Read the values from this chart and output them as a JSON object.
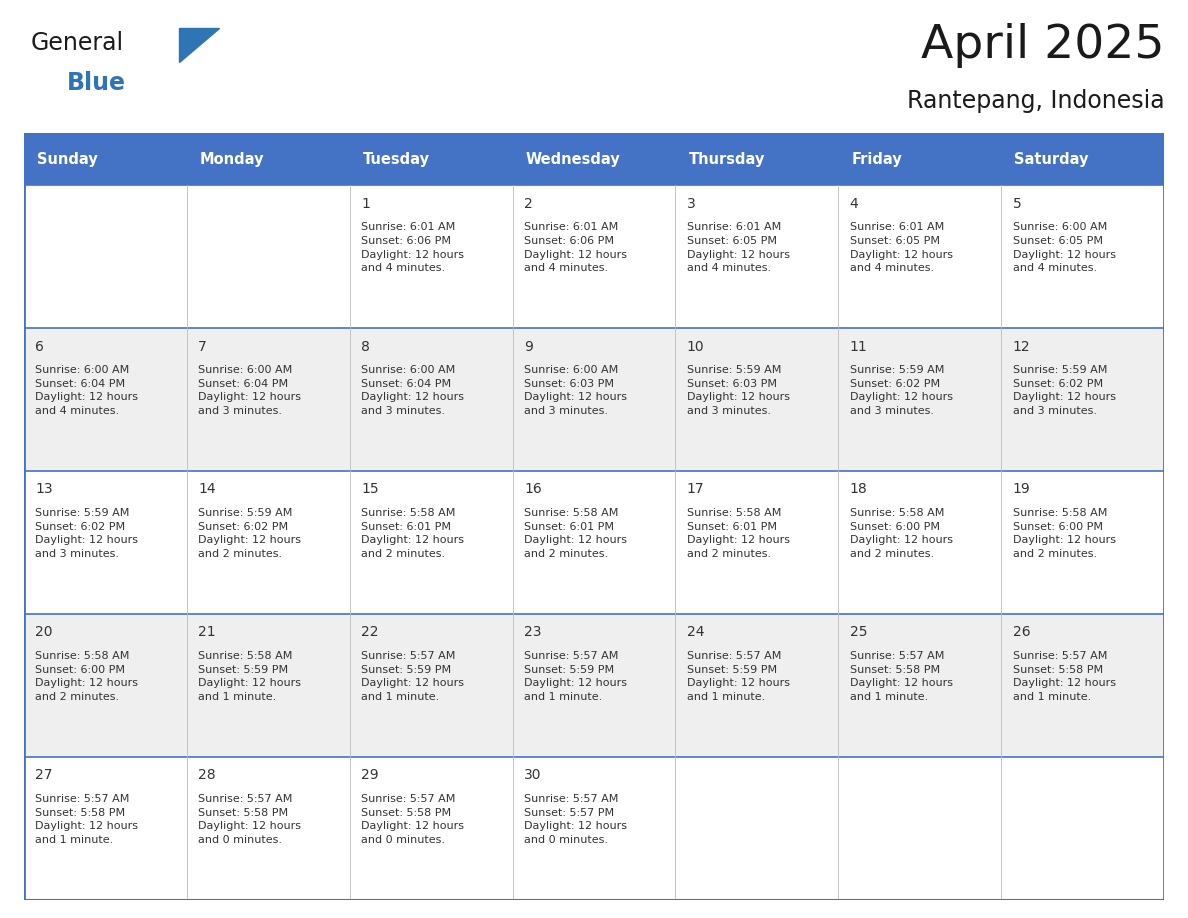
{
  "title": "April 2025",
  "subtitle": "Rantepang, Indonesia",
  "header_bg_color": "#4472C4",
  "header_text_color": "#FFFFFF",
  "header_font_size": 10.5,
  "days_of_week": [
    "Sunday",
    "Monday",
    "Tuesday",
    "Wednesday",
    "Thursday",
    "Friday",
    "Saturday"
  ],
  "title_fontsize": 34,
  "subtitle_fontsize": 17,
  "cell_text_color": "#333333",
  "alt_row_color": "#EFEFEF",
  "white_row_color": "#FFFFFF",
  "border_color": "#4472C4",
  "day_number_fontsize": 10,
  "cell_info_fontsize": 8,
  "logo_general_color": "#1a1a1a",
  "logo_blue_color": "#2E75B6",
  "logo_triangle_color": "#2E75B6",
  "calendar_data": [
    [
      {
        "day": "",
        "info": ""
      },
      {
        "day": "",
        "info": ""
      },
      {
        "day": "1",
        "info": "Sunrise: 6:01 AM\nSunset: 6:06 PM\nDaylight: 12 hours\nand 4 minutes."
      },
      {
        "day": "2",
        "info": "Sunrise: 6:01 AM\nSunset: 6:06 PM\nDaylight: 12 hours\nand 4 minutes."
      },
      {
        "day": "3",
        "info": "Sunrise: 6:01 AM\nSunset: 6:05 PM\nDaylight: 12 hours\nand 4 minutes."
      },
      {
        "day": "4",
        "info": "Sunrise: 6:01 AM\nSunset: 6:05 PM\nDaylight: 12 hours\nand 4 minutes."
      },
      {
        "day": "5",
        "info": "Sunrise: 6:00 AM\nSunset: 6:05 PM\nDaylight: 12 hours\nand 4 minutes."
      }
    ],
    [
      {
        "day": "6",
        "info": "Sunrise: 6:00 AM\nSunset: 6:04 PM\nDaylight: 12 hours\nand 4 minutes."
      },
      {
        "day": "7",
        "info": "Sunrise: 6:00 AM\nSunset: 6:04 PM\nDaylight: 12 hours\nand 3 minutes."
      },
      {
        "day": "8",
        "info": "Sunrise: 6:00 AM\nSunset: 6:04 PM\nDaylight: 12 hours\nand 3 minutes."
      },
      {
        "day": "9",
        "info": "Sunrise: 6:00 AM\nSunset: 6:03 PM\nDaylight: 12 hours\nand 3 minutes."
      },
      {
        "day": "10",
        "info": "Sunrise: 5:59 AM\nSunset: 6:03 PM\nDaylight: 12 hours\nand 3 minutes."
      },
      {
        "day": "11",
        "info": "Sunrise: 5:59 AM\nSunset: 6:02 PM\nDaylight: 12 hours\nand 3 minutes."
      },
      {
        "day": "12",
        "info": "Sunrise: 5:59 AM\nSunset: 6:02 PM\nDaylight: 12 hours\nand 3 minutes."
      }
    ],
    [
      {
        "day": "13",
        "info": "Sunrise: 5:59 AM\nSunset: 6:02 PM\nDaylight: 12 hours\nand 3 minutes."
      },
      {
        "day": "14",
        "info": "Sunrise: 5:59 AM\nSunset: 6:02 PM\nDaylight: 12 hours\nand 2 minutes."
      },
      {
        "day": "15",
        "info": "Sunrise: 5:58 AM\nSunset: 6:01 PM\nDaylight: 12 hours\nand 2 minutes."
      },
      {
        "day": "16",
        "info": "Sunrise: 5:58 AM\nSunset: 6:01 PM\nDaylight: 12 hours\nand 2 minutes."
      },
      {
        "day": "17",
        "info": "Sunrise: 5:58 AM\nSunset: 6:01 PM\nDaylight: 12 hours\nand 2 minutes."
      },
      {
        "day": "18",
        "info": "Sunrise: 5:58 AM\nSunset: 6:00 PM\nDaylight: 12 hours\nand 2 minutes."
      },
      {
        "day": "19",
        "info": "Sunrise: 5:58 AM\nSunset: 6:00 PM\nDaylight: 12 hours\nand 2 minutes."
      }
    ],
    [
      {
        "day": "20",
        "info": "Sunrise: 5:58 AM\nSunset: 6:00 PM\nDaylight: 12 hours\nand 2 minutes."
      },
      {
        "day": "21",
        "info": "Sunrise: 5:58 AM\nSunset: 5:59 PM\nDaylight: 12 hours\nand 1 minute."
      },
      {
        "day": "22",
        "info": "Sunrise: 5:57 AM\nSunset: 5:59 PM\nDaylight: 12 hours\nand 1 minute."
      },
      {
        "day": "23",
        "info": "Sunrise: 5:57 AM\nSunset: 5:59 PM\nDaylight: 12 hours\nand 1 minute."
      },
      {
        "day": "24",
        "info": "Sunrise: 5:57 AM\nSunset: 5:59 PM\nDaylight: 12 hours\nand 1 minute."
      },
      {
        "day": "25",
        "info": "Sunrise: 5:57 AM\nSunset: 5:58 PM\nDaylight: 12 hours\nand 1 minute."
      },
      {
        "day": "26",
        "info": "Sunrise: 5:57 AM\nSunset: 5:58 PM\nDaylight: 12 hours\nand 1 minute."
      }
    ],
    [
      {
        "day": "27",
        "info": "Sunrise: 5:57 AM\nSunset: 5:58 PM\nDaylight: 12 hours\nand 1 minute."
      },
      {
        "day": "28",
        "info": "Sunrise: 5:57 AM\nSunset: 5:58 PM\nDaylight: 12 hours\nand 0 minutes."
      },
      {
        "day": "29",
        "info": "Sunrise: 5:57 AM\nSunset: 5:58 PM\nDaylight: 12 hours\nand 0 minutes."
      },
      {
        "day": "30",
        "info": "Sunrise: 5:57 AM\nSunset: 5:57 PM\nDaylight: 12 hours\nand 0 minutes."
      },
      {
        "day": "",
        "info": ""
      },
      {
        "day": "",
        "info": ""
      },
      {
        "day": "",
        "info": ""
      }
    ]
  ]
}
